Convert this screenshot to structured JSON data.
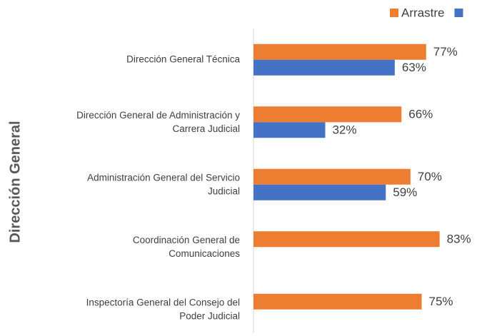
{
  "chart_data": {
    "type": "bar",
    "orientation": "horizontal",
    "y_label": "Dirección General",
    "categories": [
      "Dirección General Técnica",
      "Dirección General de Administración y\nCarrera Judicial",
      "Administración General del Servicio\nJudicial",
      "Coordinación General de\nComunicaciones",
      "Inspectoría General del Consejo del\nPoder Judicial"
    ],
    "series": [
      {
        "name": "Arrastre",
        "color": "#ed7d31",
        "values": [
          77,
          66,
          70,
          83,
          75
        ],
        "value_labels": [
          "77%",
          "66%",
          "70%",
          "83%",
          "75%"
        ]
      },
      {
        "color": "#4472c4",
        "values": [
          63,
          32,
          59,
          null,
          null
        ],
        "value_labels": [
          "63%",
          "32%",
          "59%",
          null,
          null
        ]
      }
    ],
    "legend": "top-right"
  }
}
